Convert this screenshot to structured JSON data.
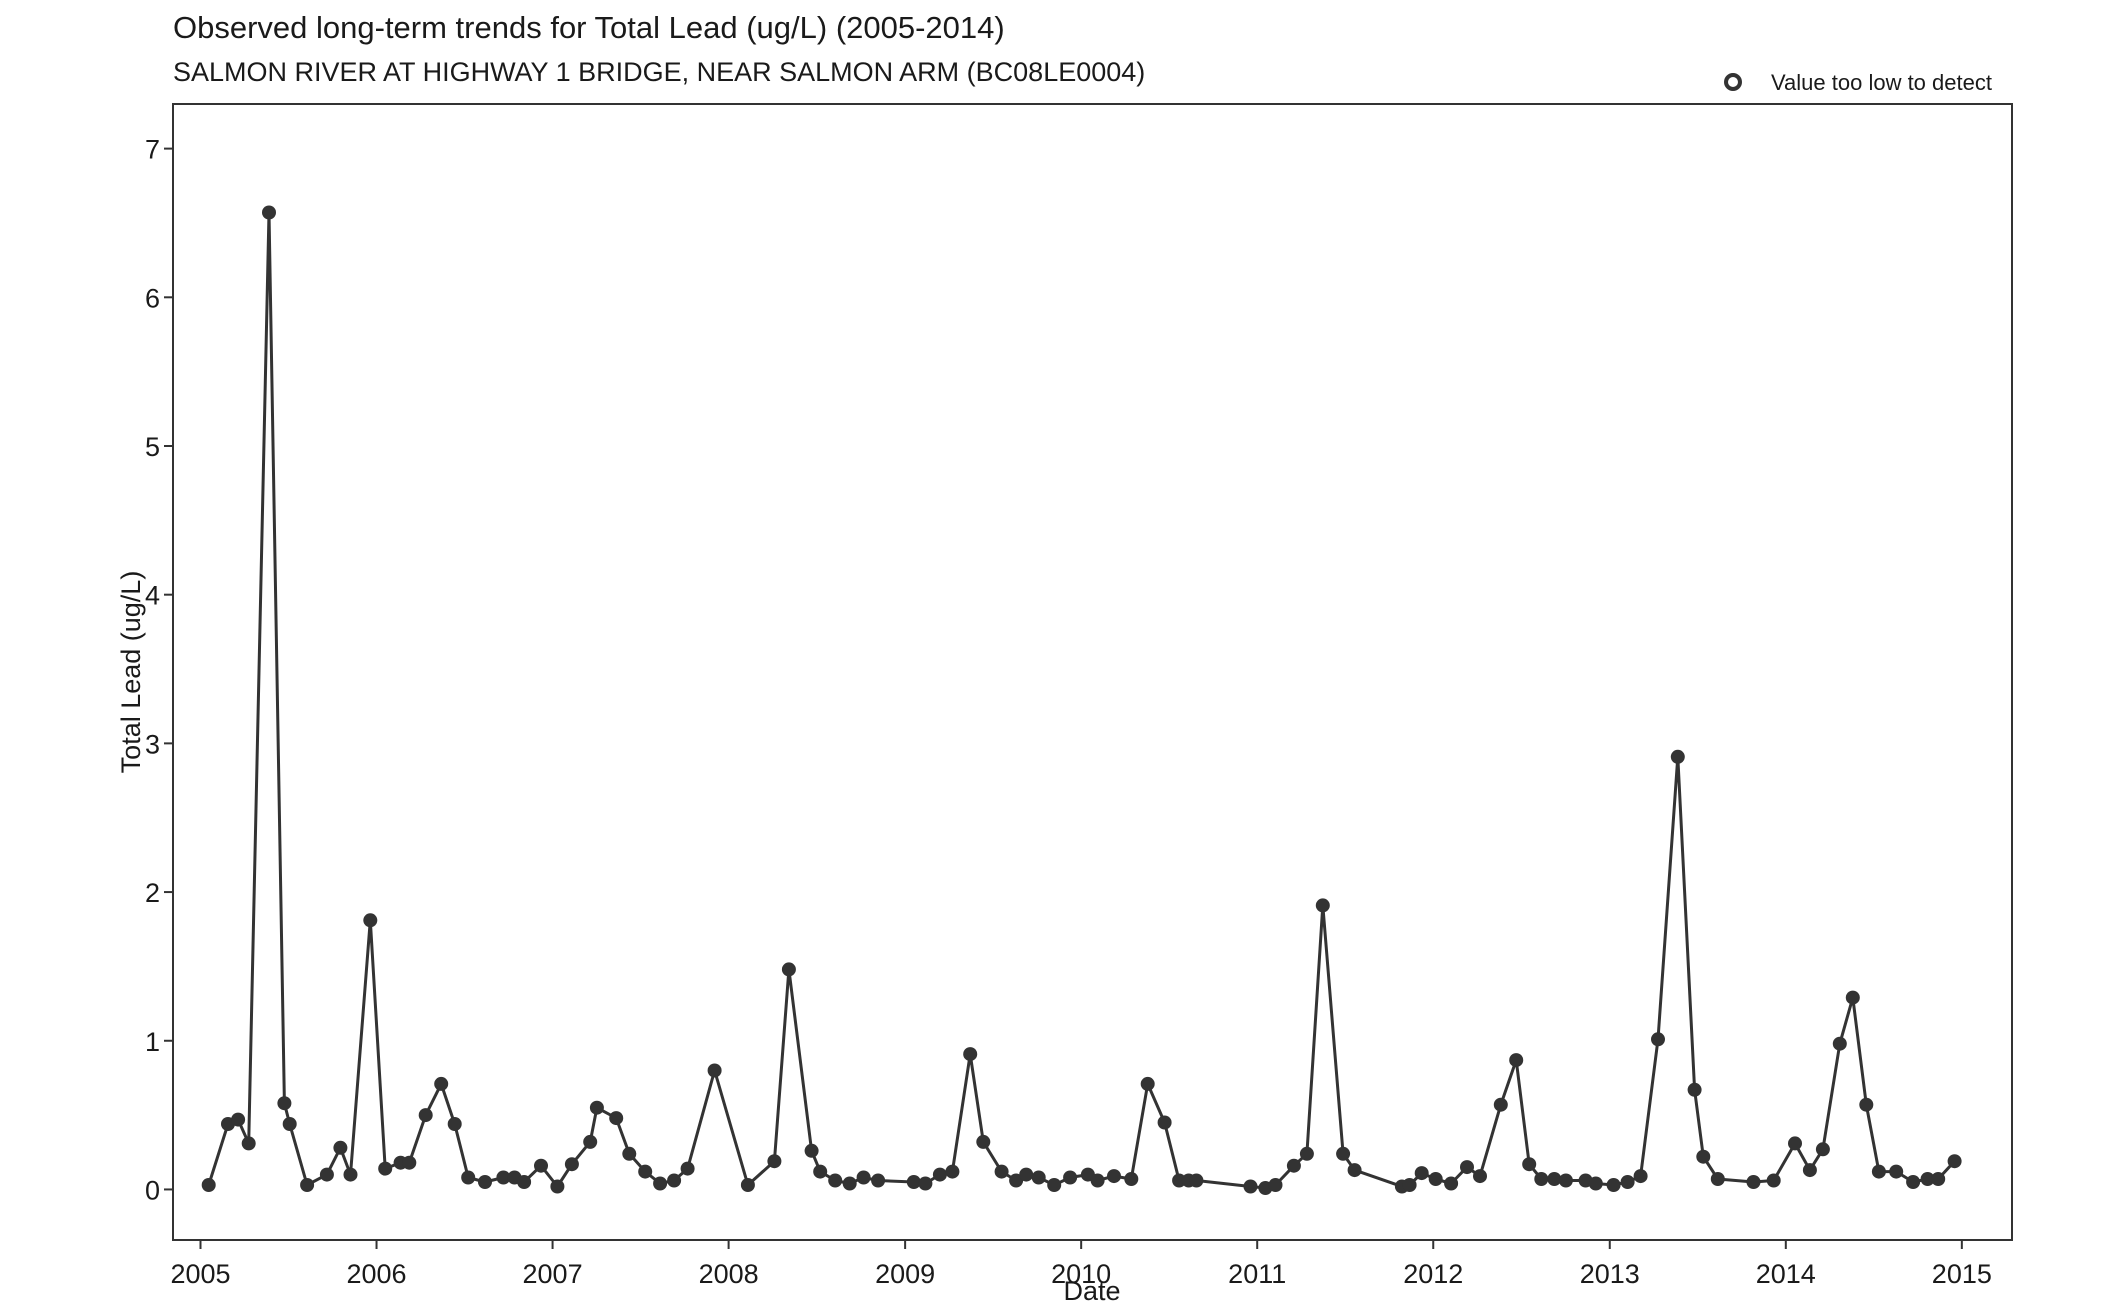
{
  "chart_data": {
    "type": "line",
    "title": "Observed long-term trends for Total Lead (ug/L) (2005-2014)",
    "subtitle": "SALMON RIVER AT HIGHWAY 1 BRIDGE, NEAR SALMON ARM (BC08LE0004)",
    "xlabel": "Date",
    "ylabel": "Total Lead (ug/L)",
    "xlim": [
      "2004-11-05",
      "2015-04-15"
    ],
    "ylim": [
      -0.34,
      7.3
    ],
    "x_ticks": [
      "2005",
      "2006",
      "2007",
      "2008",
      "2009",
      "2010",
      "2011",
      "2012",
      "2013",
      "2014",
      "2015"
    ],
    "y_ticks": [
      "0",
      "1",
      "2",
      "3",
      "4",
      "5",
      "6",
      "7"
    ],
    "grid": false,
    "legend": {
      "position": "top-right",
      "entries": [
        {
          "label": "Value too low to detect",
          "marker": "open-circle"
        }
      ]
    },
    "colors": {
      "line": "#333333",
      "points": "#333333"
    },
    "series": [
      {
        "x": [
          "2005-01-18",
          "2005-02-27",
          "2005-03-20",
          "2005-04-11",
          "2005-05-23",
          "2005-06-24",
          "2005-07-05",
          "2005-08-10",
          "2005-09-20",
          "2005-10-18",
          "2005-11-08",
          "2005-12-19",
          "2006-01-19",
          "2006-02-20",
          "2006-03-10",
          "2006-04-13",
          "2006-05-15",
          "2006-06-12",
          "2006-07-10",
          "2006-08-14",
          "2006-09-21",
          "2006-10-14",
          "2006-11-03",
          "2006-12-08",
          "2007-01-11",
          "2007-02-10",
          "2007-03-20",
          "2007-04-03",
          "2007-05-13",
          "2007-06-09",
          "2007-07-12",
          "2007-08-12",
          "2007-09-10",
          "2007-10-08",
          "2007-12-03",
          "2008-02-10",
          "2008-04-05",
          "2008-05-05",
          "2008-06-21",
          "2008-07-09",
          "2008-08-09",
          "2008-09-08",
          "2008-10-07",
          "2008-11-06",
          "2009-01-19",
          "2009-02-12",
          "2009-03-14",
          "2009-04-09",
          "2009-05-16",
          "2009-06-12",
          "2009-07-20",
          "2009-08-19",
          "2009-09-09",
          "2009-10-05",
          "2009-11-06",
          "2009-12-09",
          "2010-01-15",
          "2010-02-04",
          "2010-03-10",
          "2010-04-15",
          "2010-05-19",
          "2010-06-23",
          "2010-07-23",
          "2010-08-12",
          "2010-08-28",
          "2010-12-18",
          "2011-01-18",
          "2011-02-08",
          "2011-03-18",
          "2011-04-14",
          "2011-05-17",
          "2011-06-28",
          "2011-07-22",
          "2011-10-28",
          "2011-11-13",
          "2011-12-08",
          "2012-01-06",
          "2012-02-07",
          "2012-03-11",
          "2012-04-07",
          "2012-05-20",
          "2012-06-21",
          "2012-07-18",
          "2012-08-12",
          "2012-09-08",
          "2012-10-02",
          "2012-11-12",
          "2012-12-03",
          "2013-01-09",
          "2013-02-07",
          "2013-03-06",
          "2013-04-11",
          "2013-05-22",
          "2013-06-26",
          "2013-07-14",
          "2013-08-13",
          "2013-10-26",
          "2013-12-07",
          "2014-01-20",
          "2014-02-20",
          "2014-03-19",
          "2014-04-23",
          "2014-05-20",
          "2014-06-17",
          "2014-07-13",
          "2014-08-18",
          "2014-09-22",
          "2014-10-22",
          "2014-11-13",
          "2014-12-17"
        ],
        "y": [
          0.03,
          0.44,
          0.47,
          0.31,
          6.57,
          0.58,
          0.44,
          0.03,
          0.1,
          0.28,
          0.1,
          1.81,
          0.14,
          0.18,
          0.18,
          0.5,
          0.71,
          0.44,
          0.08,
          0.05,
          0.08,
          0.08,
          0.05,
          0.16,
          0.02,
          0.17,
          0.32,
          0.55,
          0.48,
          0.24,
          0.12,
          0.04,
          0.06,
          0.14,
          0.8,
          0.03,
          0.19,
          1.48,
          0.26,
          0.12,
          0.06,
          0.04,
          0.08,
          0.06,
          0.05,
          0.04,
          0.1,
          0.12,
          0.91,
          0.32,
          0.12,
          0.06,
          0.1,
          0.08,
          0.03,
          0.08,
          0.1,
          0.06,
          0.09,
          0.07,
          0.71,
          0.45,
          0.06,
          0.06,
          0.06,
          0.02,
          0.01,
          0.03,
          0.16,
          0.24,
          1.91,
          0.24,
          0.13,
          0.02,
          0.03,
          0.11,
          0.07,
          0.04,
          0.15,
          0.09,
          0.57,
          0.87,
          0.17,
          0.07,
          0.07,
          0.06,
          0.06,
          0.04,
          0.03,
          0.05,
          0.09,
          1.01,
          2.91,
          0.67,
          0.22,
          0.07,
          0.05,
          0.06,
          0.31,
          0.13,
          0.27,
          0.98,
          1.29,
          0.57,
          0.12,
          0.12,
          0.05,
          0.07,
          0.07,
          0.19
        ]
      }
    ]
  }
}
